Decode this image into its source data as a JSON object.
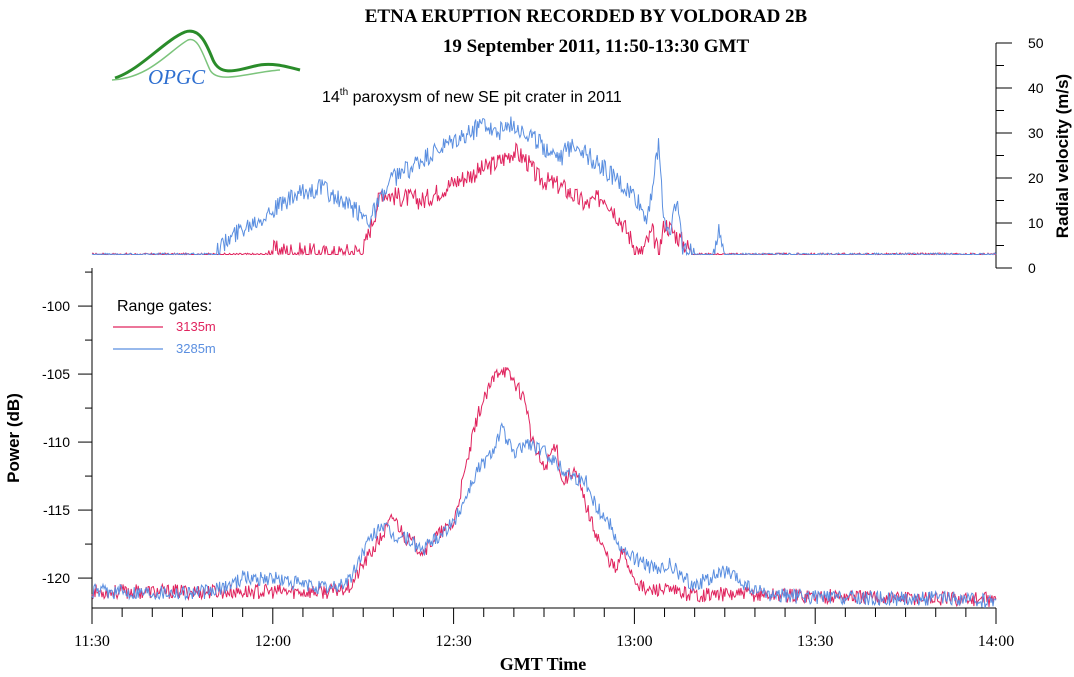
{
  "title_line1": "ETNA ERUPTION RECORDED BY VOLDORAD 2B",
  "title_line2": "19 September 2011, 11:50-13:30 GMT",
  "subtitle": {
    "prefix": "14",
    "superscript": "th",
    "rest": " paroxysm of new SE pit crater in 2011"
  },
  "logo": {
    "text": "OPGC",
    "color": "#2a8c2a",
    "text_color": "#2e6fd0"
  },
  "colors": {
    "series_3135": "#e0245e",
    "series_3285": "#5b8fe0",
    "axis": "#000000"
  },
  "legend": {
    "title": "Range gates:",
    "items": [
      {
        "label": "3135m",
        "color": "#e0245e"
      },
      {
        "label": "3285m",
        "color": "#5b8fe0"
      }
    ]
  },
  "chart_data": [
    {
      "type": "line",
      "panel": "radial-velocity",
      "ylabel": "Radial velocity (m/s)",
      "ylim": [
        0,
        50
      ],
      "yticks": [
        0,
        10,
        20,
        30,
        40,
        50
      ],
      "xlim_minutes": [
        0,
        150
      ],
      "x_unit": "minutes after 11:30 GMT",
      "series": [
        {
          "name": "3135m",
          "x": [
            0,
            29,
            30,
            40,
            45,
            46,
            48,
            50,
            55,
            60,
            65,
            68,
            70,
            72,
            74,
            78,
            82,
            85,
            88,
            90,
            91,
            93,
            94,
            95,
            100,
            120,
            150
          ],
          "values": [
            3,
            3,
            4,
            3,
            4,
            8,
            17,
            16,
            15,
            19,
            22,
            24,
            26,
            24,
            20,
            18,
            14,
            16,
            10,
            5,
            3,
            8,
            3,
            10,
            3,
            3,
            3
          ]
        },
        {
          "name": "3285m",
          "x": [
            0,
            20,
            25,
            30,
            34,
            38,
            42,
            46,
            50,
            55,
            60,
            63,
            65,
            67,
            70,
            73,
            75,
            78,
            80,
            83,
            86,
            88,
            90,
            92,
            93,
            94,
            95,
            96,
            97,
            98,
            100,
            103,
            104,
            105,
            110,
            150
          ],
          "values": [
            3,
            3,
            9,
            13,
            16,
            18,
            14,
            11,
            20,
            24,
            28,
            30,
            33,
            30,
            32,
            29,
            27,
            25,
            28,
            24,
            21,
            18,
            16,
            11,
            18,
            27,
            10,
            8,
            16,
            4,
            3,
            3,
            8,
            3,
            3,
            3
          ]
        }
      ]
    },
    {
      "type": "line",
      "panel": "power",
      "ylabel": "Power (dB)",
      "ylim": [
        -122.2,
        -97.2
      ],
      "yticks": [
        -100,
        -105,
        -110,
        -115,
        -120
      ],
      "xlim_minutes": [
        0,
        150
      ],
      "xticks_labels": [
        "11:30",
        "12:00",
        "12:30",
        "13:00",
        "13:30",
        "14:00"
      ],
      "xlabel": "GMT Time",
      "series": [
        {
          "name": "3135m",
          "x": [
            0,
            20,
            30,
            40,
            43,
            45,
            48,
            50,
            52,
            55,
            57,
            60,
            62,
            64,
            66,
            67,
            68,
            70,
            72,
            73,
            75,
            77,
            78,
            80,
            83,
            85,
            87,
            88,
            90,
            92,
            94,
            96,
            100,
            110,
            120,
            130,
            140,
            150
          ],
          "values": [
            -121,
            -121,
            -121,
            -121,
            -120.5,
            -119,
            -117,
            -115.5,
            -117,
            -118,
            -117,
            -116,
            -112,
            -108,
            -106,
            -105,
            -104.5,
            -105.5,
            -107,
            -110,
            -112,
            -110,
            -113,
            -112,
            -116,
            -118,
            -119.5,
            -118,
            -120,
            -121,
            -120.8,
            -121,
            -121.2,
            -121.2,
            -121.3,
            -121.4,
            -121.5,
            -121.6
          ]
        },
        {
          "name": "3285m",
          "x": [
            0,
            20,
            25,
            30,
            35,
            40,
            43,
            45,
            48,
            50,
            52,
            55,
            57,
            60,
            62,
            64,
            66,
            67,
            68,
            70,
            72,
            74,
            76,
            78,
            80,
            82,
            84,
            86,
            88,
            90,
            92,
            94,
            96,
            98,
            100,
            105,
            110,
            115,
            120,
            130,
            140,
            150
          ],
          "values": [
            -121,
            -121,
            -120,
            -120,
            -120.5,
            -120.8,
            -120,
            -118,
            -116,
            -117,
            -117,
            -118,
            -117,
            -116,
            -114,
            -112,
            -111,
            -110,
            -109,
            -111,
            -110,
            -110.5,
            -111,
            -112,
            -112.5,
            -113,
            -115,
            -116,
            -118,
            -118.5,
            -119,
            -119.5,
            -119,
            -120,
            -120.5,
            -119.5,
            -121,
            -121.3,
            -121.4,
            -121.5,
            -121.5,
            -121.7
          ]
        }
      ]
    }
  ]
}
